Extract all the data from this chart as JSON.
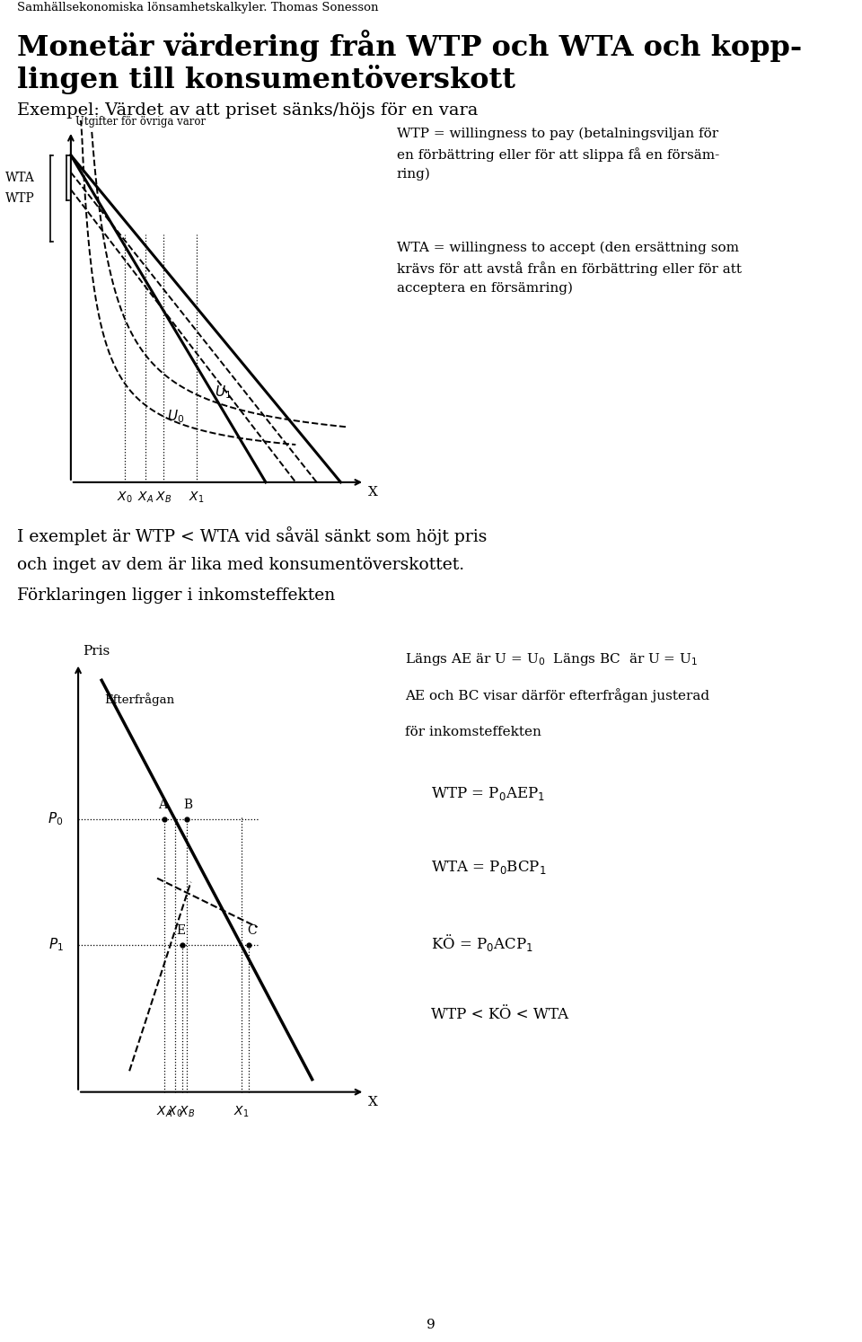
{
  "header": "Samhällsekonomiska lönsamhetskalkyler. Thomas Sonesson",
  "title_line1": "Monetär värdering från WTP och WTA och kopp-",
  "title_line2": "lingen till konsumentöverskott",
  "subtitle": "Exempel: Värdet av att priset sänks/höjs för en vara",
  "bg_color": "#ffffff",
  "text_color": "#000000",
  "wtp_def": "WTP = willingness to pay (betalningsviljan för\nen förbättring eller för att slippa få en försäm-\nring)",
  "wta_def": "WTA = willingness to accept (den ersättning som\nkrävs för att avstå från en förbättring eller för att\nacceptera en försämring)",
  "paragraph1_line1": "I exemplet är WTP < WTA vid såväl sänkt som höjt pris",
  "paragraph1_line2": "och inget av dem är lika med konsumentöverskottet.",
  "paragraph1_line3": "Förklaringen ligger i inkomsteffekten",
  "annotation_line1": "Längs AE är U = U",
  "annotation_line1b": "0",
  "annotation_line1c": "  Längs BC  är U = U",
  "annotation_line1d": "1",
  "annotation_line2": "AE och BC visar därför efterfrågan justerad",
  "annotation_line3": "för inkomsteffekten",
  "page_number": "9"
}
